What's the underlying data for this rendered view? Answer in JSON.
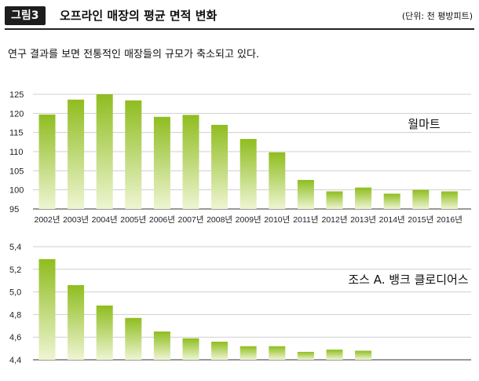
{
  "header": {
    "tag": "그림3",
    "title": "오프라인 매장의 평균 면적 변화",
    "unit": "(단위: 천 평방피트)"
  },
  "subtitle": "연구 결과를 보면 전통적인 매장들의 규모가 축소되고 있다.",
  "colors": {
    "bar_top": "#8fbd1f",
    "bar_bottom": "#eef5d2",
    "grid": "#cfcfcf"
  },
  "chart_data": [
    {
      "type": "bar",
      "label": "월마트",
      "categories": [
        "2002년",
        "2003년",
        "2004년",
        "2005년",
        "2006년",
        "2007년",
        "2008년",
        "2009년",
        "2010년",
        "2011년",
        "2012년",
        "2013년",
        "2014년",
        "2015년",
        "2016년"
      ],
      "values": [
        119.7,
        123.6,
        125.0,
        123.4,
        119.1,
        119.6,
        117.0,
        113.3,
        109.8,
        102.6,
        99.6,
        100.6,
        99.0,
        100.0,
        99.6
      ],
      "ylim": [
        95,
        125
      ],
      "yticks": [
        "125",
        "120",
        "115",
        "110",
        "105",
        "100",
        "95"
      ],
      "grid": true
    },
    {
      "type": "bar",
      "label": "조스 A. 뱅크 클로디어스",
      "values": [
        5.29,
        5.06,
        4.88,
        4.77,
        4.65,
        4.59,
        4.56,
        4.52,
        4.52,
        4.47,
        4.49,
        4.48
      ],
      "ylim": [
        4.4,
        5.4
      ],
      "yticks": [
        "5,4",
        "5,2",
        "5,0",
        "4,8",
        "4,6",
        "4,4"
      ],
      "grid": true
    }
  ]
}
